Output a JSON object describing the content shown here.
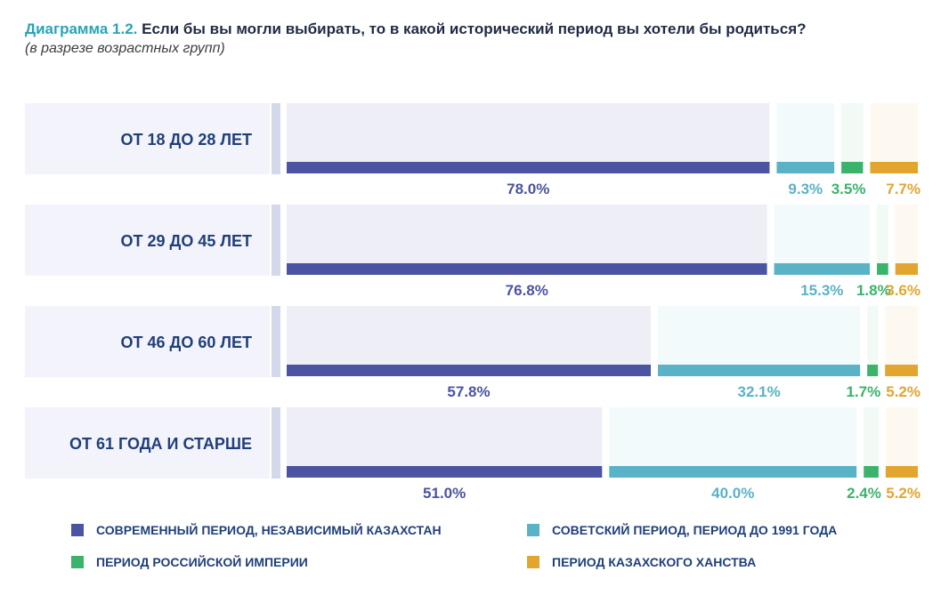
{
  "header": {
    "title_prefix": "Диаграмма 1.2.",
    "title_text": " Если бы вы могли выбирать, то в какой исторический период вы хотели бы родиться?",
    "subtitle": "(в разрезе возрастных групп)"
  },
  "colors": {
    "modern": "#4b53a3",
    "soviet": "#5ab2c6",
    "russian": "#3bb36b",
    "khanate": "#e2a52f",
    "row_bg": "#f3f3fb",
    "divider": "#d3d8ea"
  },
  "legend": {
    "items": [
      {
        "label": "СОВРЕМЕННЫЙ ПЕРИОД, НЕЗАВИСИМЫЙ КАЗАХСТАН",
        "color": "#4b53a3"
      },
      {
        "label": "СОВЕТСКИЙ ПЕРИОД, ПЕРИОД ДО 1991 ГОДА",
        "color": "#5ab2c6"
      },
      {
        "label": "ПЕРИОД РОССИЙСКОЙ ИМПЕРИИ",
        "color": "#3bb36b"
      },
      {
        "label": "ПЕРИОД КАЗАХСКОГО ХАНСТВА",
        "color": "#e2a52f"
      }
    ]
  },
  "chart_data": {
    "type": "bar",
    "orientation": "horizontal",
    "stacked": true,
    "title": "Если бы вы могли выбирать, то в какой исторический период вы хотели бы родиться?",
    "subtitle": "(в разрезе возрастных групп)",
    "categories": [
      "ОТ 18 ДО 28 ЛЕТ",
      "ОТ 29 ДО 45 ЛЕТ",
      "ОТ 46 ДО 60 ЛЕТ",
      "ОТ 61 ГОДА И СТАРШЕ"
    ],
    "series": [
      {
        "name": "СОВРЕМЕННЫЙ ПЕРИОД, НЕЗАВИСИМЫЙ КАЗАХСТАН",
        "values": [
          78.0,
          76.8,
          57.8,
          51.0
        ],
        "labels": [
          "78.0%",
          "76.8%",
          "57.8%",
          "51.0%"
        ]
      },
      {
        "name": "СОВЕТСКИЙ ПЕРИОД, ПЕРИОД ДО 1991 ГОДА",
        "values": [
          9.3,
          15.3,
          32.1,
          40.0
        ],
        "labels": [
          "9.3%",
          "15.3%",
          "32.1%",
          "40.0%"
        ]
      },
      {
        "name": "ПЕРИОД РОССИЙСКОЙ ИМПЕРИИ",
        "values": [
          3.5,
          1.8,
          1.7,
          2.4
        ],
        "labels": [
          "3.5%",
          "1.8%",
          "1.7%",
          "2.4%"
        ]
      },
      {
        "name": "ПЕРИОД КАЗАХСКОГО ХАНСТВА",
        "values": [
          7.7,
          3.6,
          5.2,
          5.2
        ],
        "labels": [
          "7.7%",
          "3.6%",
          "5.2%",
          "5.2%"
        ]
      }
    ],
    "unit": "%",
    "legend_position": "bottom",
    "grid": false
  }
}
